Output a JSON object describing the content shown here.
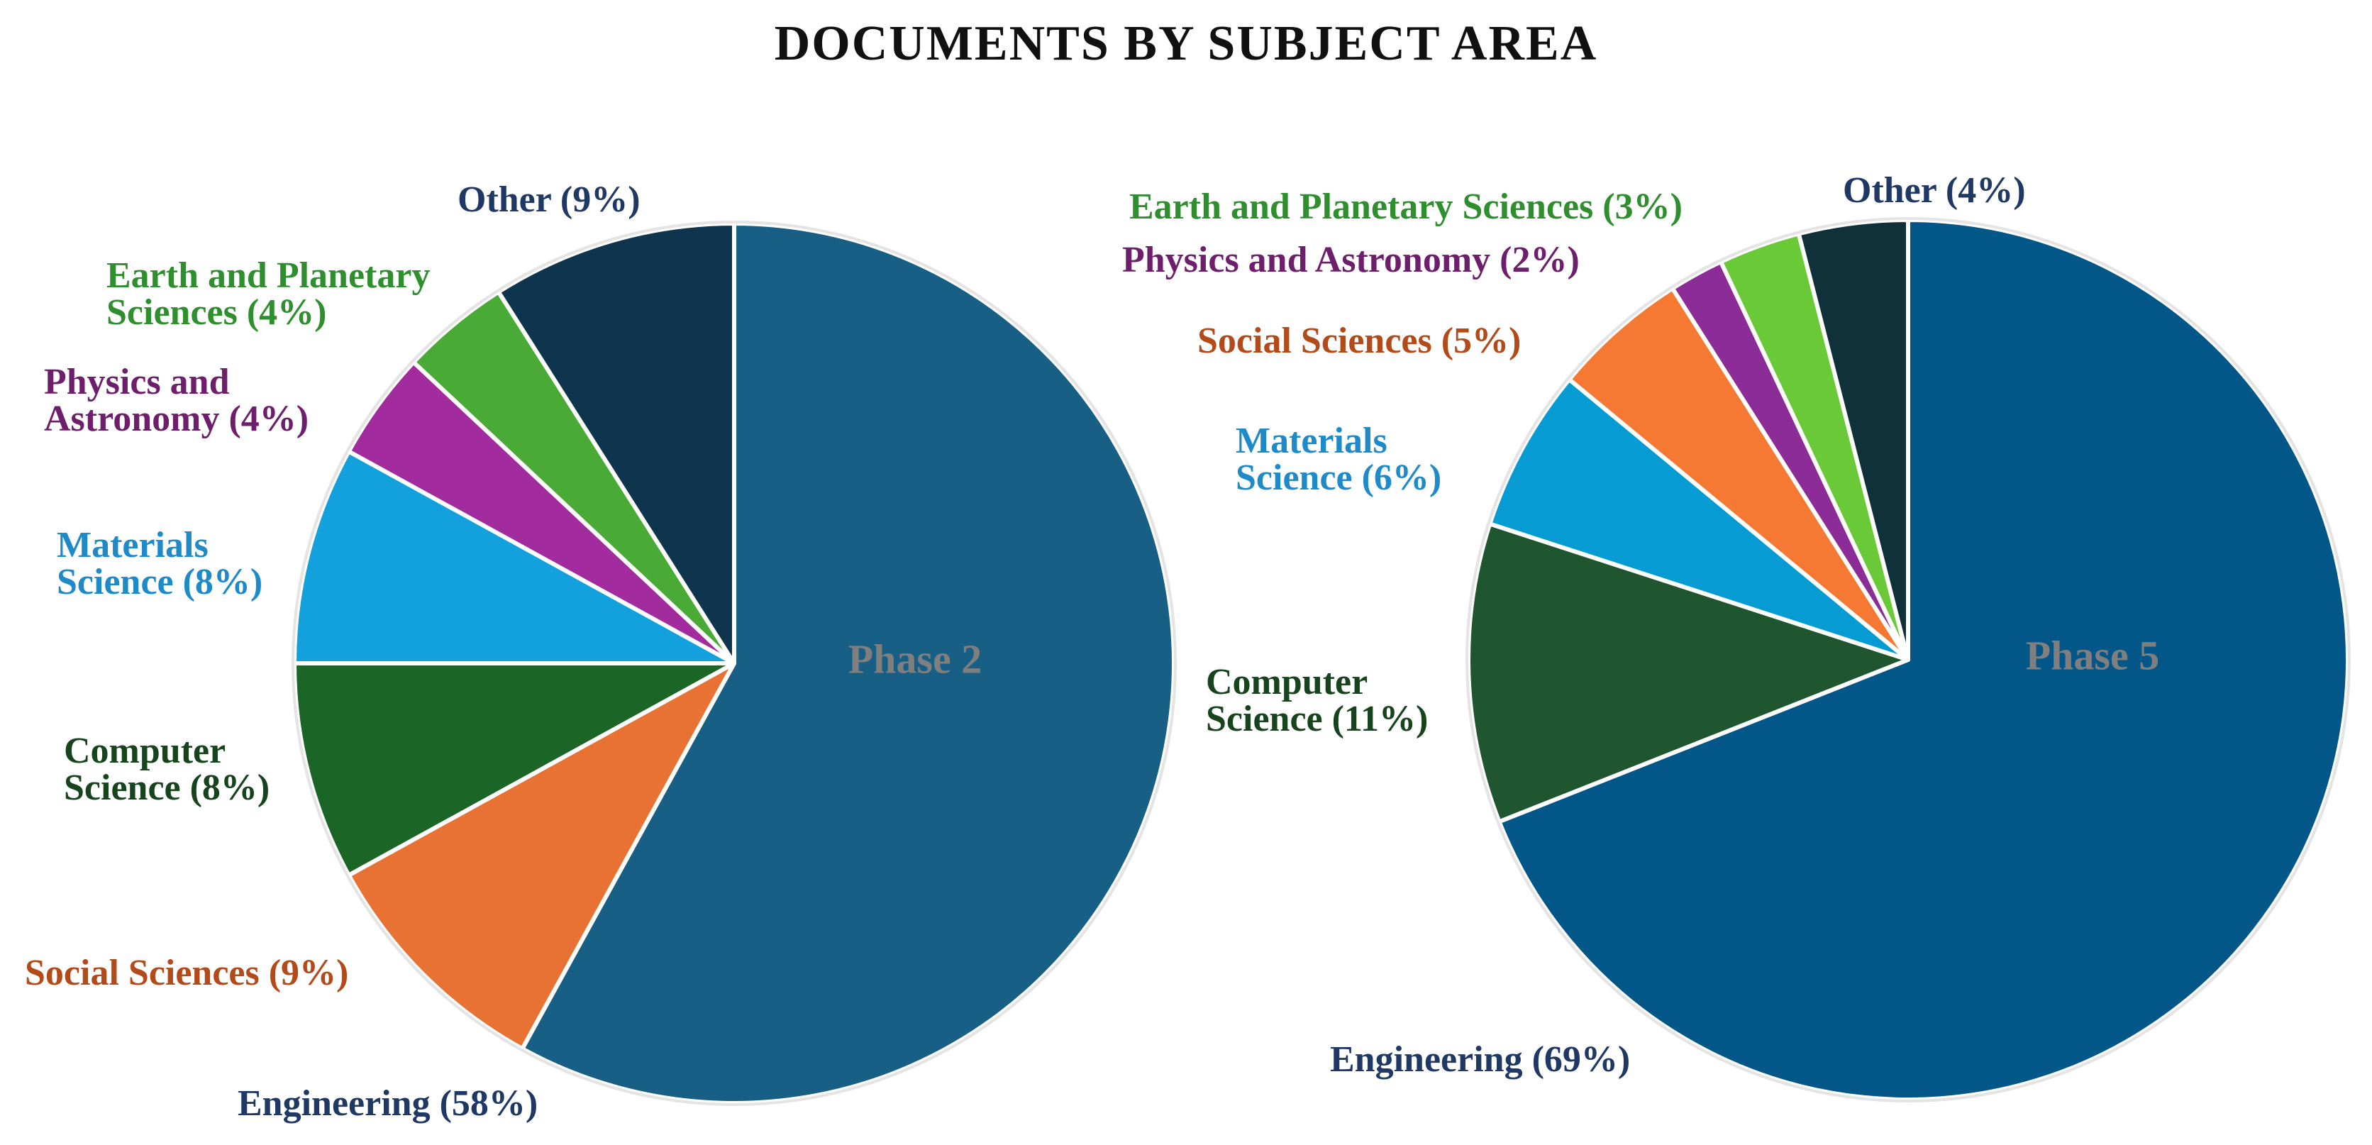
{
  "title": "DOCUMENTS BY SUBJECT AREA",
  "chart_data": [
    {
      "type": "pie",
      "center_label": "Phase 2",
      "slices": [
        {
          "label": "Engineering",
          "value": 58,
          "percent_text": "(58%)",
          "color": "#185f86",
          "label_color": "#1f3864"
        },
        {
          "label": "Social Sciences",
          "value": 9,
          "percent_text": "(9%)",
          "color": "#e87233",
          "label_color": "#b24a1a"
        },
        {
          "label": "Computer Science",
          "value": 8,
          "percent_text": "(8%)",
          "color": "#1b6527",
          "label_color": "#17441d"
        },
        {
          "label": "Materials Science",
          "value": 8,
          "percent_text": "(8%)",
          "color": "#12a1dc",
          "label_color": "#1e8ac8"
        },
        {
          "label": "Physics and Astronomy",
          "value": 4,
          "percent_text": "(4%)",
          "color": "#a22b9e",
          "label_color": "#6e1f6b"
        },
        {
          "label": "Earth and Planetary Sciences",
          "value": 4,
          "percent_text": "(4%)",
          "color": "#4aaa36",
          "label_color": "#2f8f2f"
        },
        {
          "label": "Other",
          "value": 9,
          "percent_text": "(9%)",
          "color": "#0f344d",
          "label_color": "#1f3864"
        }
      ]
    },
    {
      "type": "pie",
      "center_label": "Phase 5",
      "slices": [
        {
          "label": "Engineering",
          "value": 69,
          "percent_text": "(69%)",
          "color": "#035688",
          "label_color": "#1f3864"
        },
        {
          "label": "Computer Science",
          "value": 11,
          "percent_text": "(11%)",
          "color": "#1f5630",
          "label_color": "#17441d"
        },
        {
          "label": "Materials Science",
          "value": 6,
          "percent_text": "(6%)",
          "color": "#079bd4",
          "label_color": "#1e8ac8"
        },
        {
          "label": "Social Sciences",
          "value": 5,
          "percent_text": "(5%)",
          "color": "#f57933",
          "label_color": "#b24a1a"
        },
        {
          "label": "Physics and Astronomy",
          "value": 2,
          "percent_text": "(2%)",
          "color": "#8c2d97",
          "label_color": "#6e1f6b"
        },
        {
          "label": "Earth and Planetary Sciences",
          "value": 3,
          "percent_text": "(3%)",
          "color": "#69c937",
          "label_color": "#2f8f2f"
        },
        {
          "label": "Other",
          "value": 4,
          "percent_text": "(4%)",
          "color": "#10303a",
          "label_color": "#1f3864"
        }
      ]
    }
  ]
}
